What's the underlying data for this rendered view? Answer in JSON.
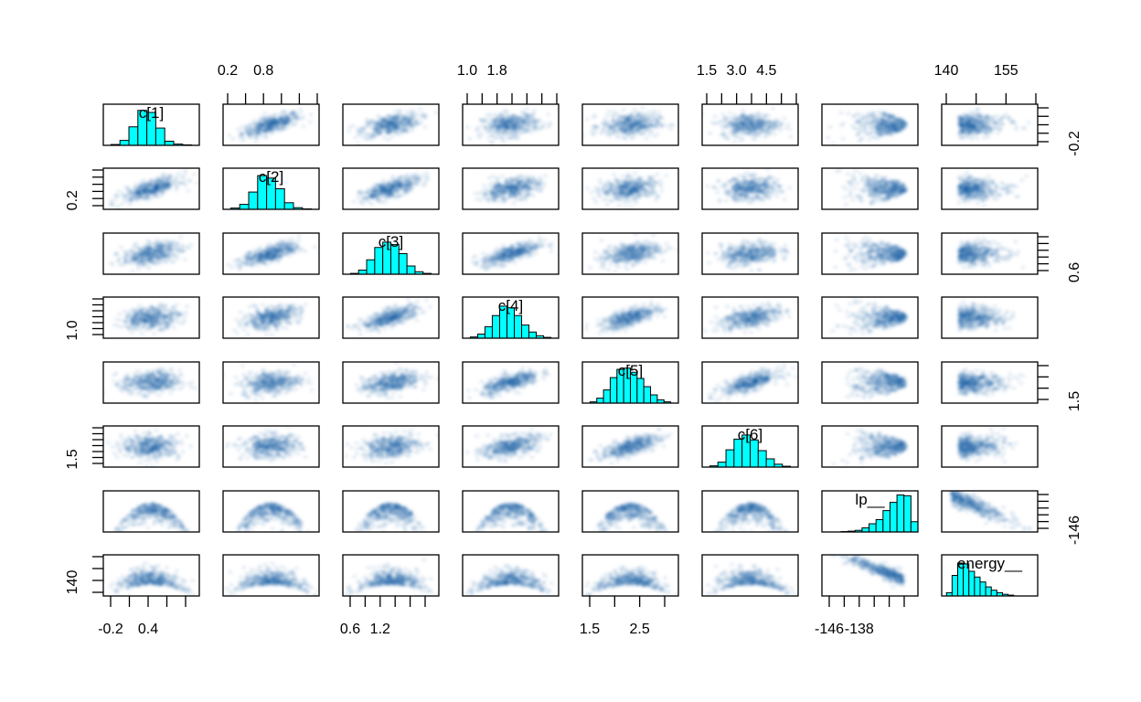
{
  "chart_data": {
    "type": "scatter",
    "subtype": "pairs-plot-matrix",
    "title": "",
    "variables": [
      "c[1]",
      "c[2]",
      "c[3]",
      "c[4]",
      "c[5]",
      "c[6]",
      "lp__",
      "energy__"
    ],
    "diagonal_labels": [
      "c[1]",
      "c[2]",
      "c[3]",
      "c[4]",
      "c[5]",
      "c[6]",
      "lp__",
      "energy__"
    ],
    "diagonal": "histogram",
    "off_diagonal": "smoothed density scatter",
    "histogram_color": "#00FFFF",
    "scatter_color": "#08519C",
    "axes": {
      "top": [
        {
          "col": 1,
          "variable": "c[2]",
          "labels": [
            "0.2",
            "0.8"
          ],
          "n_ticks": 6
        },
        {
          "col": 3,
          "variable": "c[4]",
          "labels": [
            "1.0",
            "1.8"
          ],
          "n_ticks": 7
        },
        {
          "col": 5,
          "variable": "c[6]",
          "labels": [
            "1.5",
            "3.0",
            "4.5"
          ],
          "n_ticks": 7
        },
        {
          "col": 7,
          "variable": "energy__",
          "labels": [
            "140",
            "155"
          ],
          "n_ticks": 4
        }
      ],
      "bottom": [
        {
          "col": 0,
          "variable": "c[1]",
          "labels": [
            "-0.2",
            "0.4"
          ],
          "n_ticks": 5
        },
        {
          "col": 2,
          "variable": "c[3]",
          "labels": [
            "0.6",
            "1.2"
          ],
          "n_ticks": 6
        },
        {
          "col": 4,
          "variable": "c[5]",
          "labels": [
            "1.5",
            "2.5"
          ],
          "n_ticks": 4
        },
        {
          "col": 6,
          "variable": "lp__",
          "labels": [
            "-146",
            "-138"
          ],
          "n_ticks": 6
        }
      ],
      "left": [
        {
          "row": 1,
          "variable": "c[2]",
          "labels": [
            "0.2"
          ],
          "n_ticks": 6
        },
        {
          "row": 3,
          "variable": "c[4]",
          "labels": [
            "1.0"
          ],
          "n_ticks": 7
        },
        {
          "row": 5,
          "variable": "c[6]",
          "labels": [
            "1.5"
          ],
          "n_ticks": 7
        },
        {
          "row": 7,
          "variable": "energy__",
          "labels": [
            "140"
          ],
          "n_ticks": 4
        }
      ],
      "right": [
        {
          "row": 0,
          "variable": "c[1]",
          "labels": [
            "-0.2"
          ],
          "n_ticks": 5
        },
        {
          "row": 2,
          "variable": "c[3]",
          "labels": [
            "0.6"
          ],
          "n_ticks": 6
        },
        {
          "row": 4,
          "variable": "c[5]",
          "labels": [
            "1.5"
          ],
          "n_ticks": 4
        },
        {
          "row": 6,
          "variable": "lp__",
          "labels": [
            "-146"
          ],
          "n_ticks": 6
        }
      ]
    },
    "histograms": [
      {
        "variable": "c[1]",
        "bar_heights": [
          0.02,
          0.12,
          0.45,
          0.85,
          0.8,
          0.42,
          0.1,
          0.03,
          0.01
        ]
      },
      {
        "variable": "c[2]",
        "bar_heights": [
          0.03,
          0.12,
          0.42,
          0.82,
          0.76,
          0.5,
          0.16,
          0.04,
          0.01
        ]
      },
      {
        "variable": "c[3]",
        "bar_heights": [
          0.02,
          0.1,
          0.35,
          0.65,
          0.78,
          0.72,
          0.5,
          0.2,
          0.06,
          0.02
        ]
      },
      {
        "variable": "c[4]",
        "bar_heights": [
          0.03,
          0.1,
          0.28,
          0.55,
          0.78,
          0.74,
          0.55,
          0.32,
          0.15,
          0.06,
          0.02
        ]
      },
      {
        "variable": "c[5]",
        "bar_heights": [
          0.03,
          0.12,
          0.32,
          0.62,
          0.82,
          0.85,
          0.75,
          0.6,
          0.4,
          0.2,
          0.08,
          0.03
        ]
      },
      {
        "variable": "c[6]",
        "bar_heights": [
          0.03,
          0.12,
          0.42,
          0.68,
          0.78,
          0.66,
          0.4,
          0.2,
          0.07,
          0.02
        ]
      },
      {
        "variable": "lp__",
        "bar_heights": [
          0.01,
          0.02,
          0.04,
          0.1,
          0.2,
          0.3,
          0.52,
          0.72,
          0.9,
          0.88,
          0.25
        ]
      },
      {
        "variable": "energy__",
        "bar_heights": [
          0.08,
          0.5,
          0.8,
          0.78,
          0.6,
          0.46,
          0.34,
          0.22,
          0.14,
          0.08,
          0.04,
          0.02
        ]
      }
    ],
    "scatter_shapes": {
      "c_vs_c": "elliptical, positive correlation (strong for neighbours, weak for distant pairs)",
      "c_vs_lp": "dome / inverted-U",
      "c_vs_energy": "bowl, dense at low energy",
      "lp_vs_energy": "strong negative correlation"
    },
    "correlations": [
      [
        1.0,
        0.7,
        0.45,
        0.25,
        0.1,
        0.05,
        0.0,
        0.0
      ],
      [
        0.7,
        1.0,
        0.7,
        0.45,
        0.25,
        0.1,
        0.0,
        0.0
      ],
      [
        0.45,
        0.7,
        1.0,
        0.7,
        0.45,
        0.25,
        0.0,
        0.0
      ],
      [
        0.25,
        0.45,
        0.7,
        1.0,
        0.7,
        0.45,
        0.0,
        0.0
      ],
      [
        0.1,
        0.25,
        0.45,
        0.7,
        1.0,
        0.7,
        0.0,
        0.0
      ],
      [
        0.05,
        0.1,
        0.25,
        0.45,
        0.7,
        1.0,
        0.0,
        0.0
      ],
      [
        0.0,
        0.0,
        0.0,
        0.0,
        0.0,
        0.0,
        1.0,
        -0.8
      ],
      [
        0.0,
        0.0,
        0.0,
        0.0,
        0.0,
        0.0,
        -0.8,
        1.0
      ]
    ],
    "grid": false,
    "legend": null
  }
}
